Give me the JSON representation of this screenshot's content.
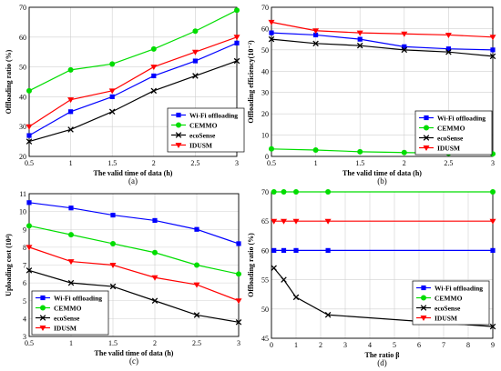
{
  "chart_data": [
    {
      "type": "line",
      "panel_label": "(a)",
      "xlabel": "The valid time of data (h)",
      "ylabel": "Offloading ratio (%)",
      "x": [
        0.5,
        1,
        1.5,
        2,
        2.5,
        3
      ],
      "xticks": [
        "0.5",
        "1",
        "1.5",
        "2",
        "2.5",
        "3"
      ],
      "xlim": [
        0.5,
        3
      ],
      "ylim": [
        20,
        70
      ],
      "yticks": [
        "20",
        "30",
        "40",
        "50",
        "60",
        "70"
      ],
      "grid": true,
      "legend_position": "bottom-right",
      "series": [
        {
          "name": "Wi-Fi offloading",
          "color": "#0000ff",
          "marker": "square",
          "values": [
            27,
            35,
            40,
            47,
            52,
            58
          ]
        },
        {
          "name": "CEMMO",
          "color": "#00dd00",
          "marker": "circle",
          "values": [
            42,
            49,
            51,
            56,
            62,
            69
          ]
        },
        {
          "name": "ecoSense",
          "color": "#000000",
          "marker": "x",
          "values": [
            25,
            29,
            35,
            42,
            47,
            52
          ]
        },
        {
          "name": "IDUSM",
          "color": "#ff0000",
          "marker": "triangle",
          "values": [
            30,
            39,
            42,
            50,
            55,
            60
          ]
        }
      ]
    },
    {
      "type": "line",
      "panel_label": "(b)",
      "xlabel": "The valid time of data (h)",
      "ylabel": "Offloading efficiency(10⁻²)",
      "x": [
        0.5,
        1,
        1.5,
        2,
        2.5,
        3
      ],
      "xticks": [
        "0.5",
        "1",
        "1.5",
        "2",
        "2.5",
        "3"
      ],
      "xlim": [
        0.5,
        3
      ],
      "ylim": [
        0,
        70
      ],
      "yticks": [
        "0",
        "10",
        "20",
        "30",
        "40",
        "50",
        "60",
        "70"
      ],
      "grid": true,
      "legend_position": "right",
      "series": [
        {
          "name": "Wi-Fi offloading",
          "color": "#0000ff",
          "marker": "square",
          "values": [
            58,
            57,
            55,
            51.5,
            50.5,
            50
          ]
        },
        {
          "name": "CEMMO",
          "color": "#00dd00",
          "marker": "circle",
          "values": [
            3.5,
            3,
            2.2,
            1.8,
            1.5,
            1.2
          ]
        },
        {
          "name": "ecoSense",
          "color": "#000000",
          "marker": "x",
          "values": [
            55,
            53,
            52,
            50,
            49,
            47
          ]
        },
        {
          "name": "IDUSM",
          "color": "#ff0000",
          "marker": "triangle",
          "values": [
            63,
            59,
            58,
            57.5,
            57,
            56
          ]
        }
      ]
    },
    {
      "type": "line",
      "panel_label": "(c)",
      "xlabel": "The valid time of data (h)",
      "ylabel": "Uploading cost (10⁴)",
      "x": [
        0.5,
        1,
        1.5,
        2,
        2.5,
        3
      ],
      "xticks": [
        "0.5",
        "1",
        "1.5",
        "2",
        "2.5",
        "3"
      ],
      "xlim": [
        0.5,
        3
      ],
      "ylim": [
        3,
        11
      ],
      "yticks": [
        "3",
        "4",
        "5",
        "6",
        "7",
        "8",
        "9",
        "10",
        "11"
      ],
      "grid": true,
      "legend_position": "bottom-left",
      "series": [
        {
          "name": "Wi-Fi offloading",
          "color": "#0000ff",
          "marker": "square",
          "values": [
            10.5,
            10.2,
            9.8,
            9.5,
            9.0,
            8.2
          ]
        },
        {
          "name": "CEMMO",
          "color": "#00dd00",
          "marker": "circle",
          "values": [
            9.2,
            8.7,
            8.2,
            7.7,
            7.0,
            6.5
          ]
        },
        {
          "name": "ecoSense",
          "color": "#000000",
          "marker": "x",
          "values": [
            6.7,
            6.0,
            5.8,
            5.0,
            4.2,
            3.8
          ]
        },
        {
          "name": "IDUSM",
          "color": "#ff0000",
          "marker": "triangle",
          "values": [
            8.0,
            7.2,
            7.0,
            6.3,
            5.9,
            5.0
          ]
        }
      ]
    },
    {
      "type": "line",
      "panel_label": "(d)",
      "xlabel": "The ratio β",
      "ylabel": "Offloading ratio (%)",
      "x": [
        0.1,
        0.5,
        1,
        2.3,
        9
      ],
      "xticks": [
        "0",
        "1",
        "2",
        "3",
        "4",
        "5",
        "6",
        "7",
        "8",
        "9"
      ],
      "xlim": [
        0,
        9
      ],
      "ylim": [
        45,
        70
      ],
      "yticks": [
        "45",
        "50",
        "55",
        "60",
        "65",
        "70"
      ],
      "grid": true,
      "legend_position": "bottom-right",
      "series": [
        {
          "name": "Wi-Fi offloading",
          "color": "#0000ff",
          "marker": "square",
          "values": [
            60,
            60,
            60,
            60,
            60
          ]
        },
        {
          "name": "CEMMO",
          "color": "#00dd00",
          "marker": "circle",
          "values": [
            70,
            70,
            70,
            70,
            70
          ]
        },
        {
          "name": "ecoSense",
          "color": "#000000",
          "marker": "x",
          "values": [
            57,
            55,
            52,
            49,
            47
          ]
        },
        {
          "name": "IDUSM",
          "color": "#ff0000",
          "marker": "triangle",
          "values": [
            65,
            65,
            65,
            65,
            65
          ]
        }
      ]
    }
  ]
}
